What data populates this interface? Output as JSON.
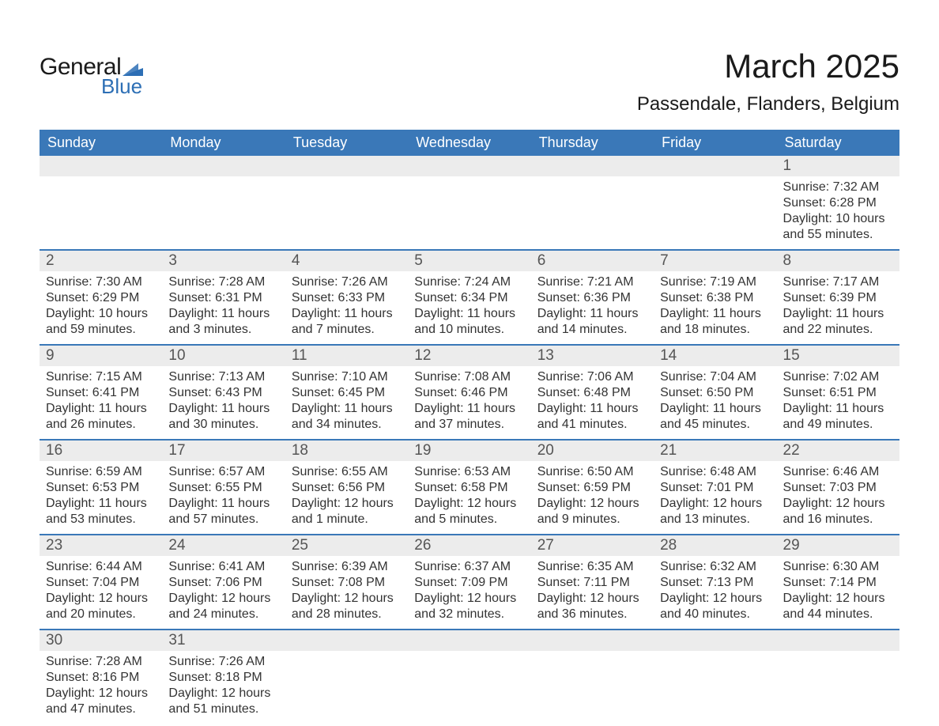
{
  "logo": {
    "word1": "General",
    "word2": "Blue",
    "flag_color": "#2d6fb5"
  },
  "title": "March 2025",
  "location": "Passendale, Flanders, Belgium",
  "colors": {
    "header_bg": "#3a78b8",
    "header_text": "#ffffff",
    "daynum_bg": "#ececec",
    "row_border": "#3a78b8",
    "body_text": "#333333"
  },
  "day_headers": [
    "Sunday",
    "Monday",
    "Tuesday",
    "Wednesday",
    "Thursday",
    "Friday",
    "Saturday"
  ],
  "weeks": [
    [
      null,
      null,
      null,
      null,
      null,
      null,
      {
        "n": "1",
        "sunrise": "Sunrise: 7:32 AM",
        "sunset": "Sunset: 6:28 PM",
        "daylight": "Daylight: 10 hours and 55 minutes."
      }
    ],
    [
      {
        "n": "2",
        "sunrise": "Sunrise: 7:30 AM",
        "sunset": "Sunset: 6:29 PM",
        "daylight": "Daylight: 10 hours and 59 minutes."
      },
      {
        "n": "3",
        "sunrise": "Sunrise: 7:28 AM",
        "sunset": "Sunset: 6:31 PM",
        "daylight": "Daylight: 11 hours and 3 minutes."
      },
      {
        "n": "4",
        "sunrise": "Sunrise: 7:26 AM",
        "sunset": "Sunset: 6:33 PM",
        "daylight": "Daylight: 11 hours and 7 minutes."
      },
      {
        "n": "5",
        "sunrise": "Sunrise: 7:24 AM",
        "sunset": "Sunset: 6:34 PM",
        "daylight": "Daylight: 11 hours and 10 minutes."
      },
      {
        "n": "6",
        "sunrise": "Sunrise: 7:21 AM",
        "sunset": "Sunset: 6:36 PM",
        "daylight": "Daylight: 11 hours and 14 minutes."
      },
      {
        "n": "7",
        "sunrise": "Sunrise: 7:19 AM",
        "sunset": "Sunset: 6:38 PM",
        "daylight": "Daylight: 11 hours and 18 minutes."
      },
      {
        "n": "8",
        "sunrise": "Sunrise: 7:17 AM",
        "sunset": "Sunset: 6:39 PM",
        "daylight": "Daylight: 11 hours and 22 minutes."
      }
    ],
    [
      {
        "n": "9",
        "sunrise": "Sunrise: 7:15 AM",
        "sunset": "Sunset: 6:41 PM",
        "daylight": "Daylight: 11 hours and 26 minutes."
      },
      {
        "n": "10",
        "sunrise": "Sunrise: 7:13 AM",
        "sunset": "Sunset: 6:43 PM",
        "daylight": "Daylight: 11 hours and 30 minutes."
      },
      {
        "n": "11",
        "sunrise": "Sunrise: 7:10 AM",
        "sunset": "Sunset: 6:45 PM",
        "daylight": "Daylight: 11 hours and 34 minutes."
      },
      {
        "n": "12",
        "sunrise": "Sunrise: 7:08 AM",
        "sunset": "Sunset: 6:46 PM",
        "daylight": "Daylight: 11 hours and 37 minutes."
      },
      {
        "n": "13",
        "sunrise": "Sunrise: 7:06 AM",
        "sunset": "Sunset: 6:48 PM",
        "daylight": "Daylight: 11 hours and 41 minutes."
      },
      {
        "n": "14",
        "sunrise": "Sunrise: 7:04 AM",
        "sunset": "Sunset: 6:50 PM",
        "daylight": "Daylight: 11 hours and 45 minutes."
      },
      {
        "n": "15",
        "sunrise": "Sunrise: 7:02 AM",
        "sunset": "Sunset: 6:51 PM",
        "daylight": "Daylight: 11 hours and 49 minutes."
      }
    ],
    [
      {
        "n": "16",
        "sunrise": "Sunrise: 6:59 AM",
        "sunset": "Sunset: 6:53 PM",
        "daylight": "Daylight: 11 hours and 53 minutes."
      },
      {
        "n": "17",
        "sunrise": "Sunrise: 6:57 AM",
        "sunset": "Sunset: 6:55 PM",
        "daylight": "Daylight: 11 hours and 57 minutes."
      },
      {
        "n": "18",
        "sunrise": "Sunrise: 6:55 AM",
        "sunset": "Sunset: 6:56 PM",
        "daylight": "Daylight: 12 hours and 1 minute."
      },
      {
        "n": "19",
        "sunrise": "Sunrise: 6:53 AM",
        "sunset": "Sunset: 6:58 PM",
        "daylight": "Daylight: 12 hours and 5 minutes."
      },
      {
        "n": "20",
        "sunrise": "Sunrise: 6:50 AM",
        "sunset": "Sunset: 6:59 PM",
        "daylight": "Daylight: 12 hours and 9 minutes."
      },
      {
        "n": "21",
        "sunrise": "Sunrise: 6:48 AM",
        "sunset": "Sunset: 7:01 PM",
        "daylight": "Daylight: 12 hours and 13 minutes."
      },
      {
        "n": "22",
        "sunrise": "Sunrise: 6:46 AM",
        "sunset": "Sunset: 7:03 PM",
        "daylight": "Daylight: 12 hours and 16 minutes."
      }
    ],
    [
      {
        "n": "23",
        "sunrise": "Sunrise: 6:44 AM",
        "sunset": "Sunset: 7:04 PM",
        "daylight": "Daylight: 12 hours and 20 minutes."
      },
      {
        "n": "24",
        "sunrise": "Sunrise: 6:41 AM",
        "sunset": "Sunset: 7:06 PM",
        "daylight": "Daylight: 12 hours and 24 minutes."
      },
      {
        "n": "25",
        "sunrise": "Sunrise: 6:39 AM",
        "sunset": "Sunset: 7:08 PM",
        "daylight": "Daylight: 12 hours and 28 minutes."
      },
      {
        "n": "26",
        "sunrise": "Sunrise: 6:37 AM",
        "sunset": "Sunset: 7:09 PM",
        "daylight": "Daylight: 12 hours and 32 minutes."
      },
      {
        "n": "27",
        "sunrise": "Sunrise: 6:35 AM",
        "sunset": "Sunset: 7:11 PM",
        "daylight": "Daylight: 12 hours and 36 minutes."
      },
      {
        "n": "28",
        "sunrise": "Sunrise: 6:32 AM",
        "sunset": "Sunset: 7:13 PM",
        "daylight": "Daylight: 12 hours and 40 minutes."
      },
      {
        "n": "29",
        "sunrise": "Sunrise: 6:30 AM",
        "sunset": "Sunset: 7:14 PM",
        "daylight": "Daylight: 12 hours and 44 minutes."
      }
    ],
    [
      {
        "n": "30",
        "sunrise": "Sunrise: 7:28 AM",
        "sunset": "Sunset: 8:16 PM",
        "daylight": "Daylight: 12 hours and 47 minutes."
      },
      {
        "n": "31",
        "sunrise": "Sunrise: 7:26 AM",
        "sunset": "Sunset: 8:18 PM",
        "daylight": "Daylight: 12 hours and 51 minutes."
      },
      null,
      null,
      null,
      null,
      null
    ]
  ]
}
